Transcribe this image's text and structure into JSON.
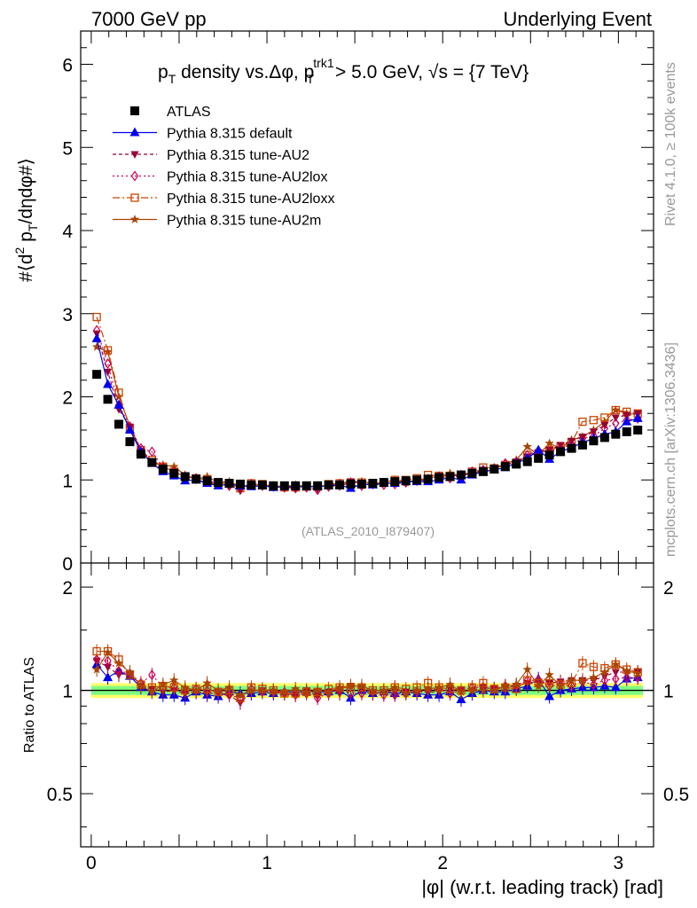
{
  "header": {
    "left": "7000 GeV pp",
    "right": "Underlying Event"
  },
  "side_labels": {
    "rivet": "Rivet 4.1.0, ≥ 100k events",
    "site": "mcplots.cern.ch [arXiv:1306.3436]"
  },
  "analysis_id": "(ATLAS_2010_I879407)",
  "chart_data": [
    {
      "type": "scatter",
      "title": "p_T density vs.Δφ, p_T^trk1 > 5.0 GeV, √s = {7 TeV}",
      "title_parts": {
        "p": "p",
        "T": "T",
        "mid": " density vs.Δφ, p",
        "sup": "trk1",
        "sub2": "T",
        "tail": " > 5.0 GeV, √s = {7 TeV}"
      },
      "xlabel": "|φ| (w.r.t. leading track) [rad]",
      "ylabel": "#⟨d² p_T/dηdφ#⟩",
      "ylabel_parts": {
        "main": "#⟨d",
        "sup": "2",
        "mid": " p",
        "sub": "T",
        "tail": "/dηdφ#⟩"
      },
      "xlim": [
        -0.06,
        3.2
      ],
      "ylim": [
        0,
        6.4
      ],
      "yticks": [
        0,
        1,
        2,
        3,
        4,
        5,
        6
      ],
      "xticks": [
        0,
        1,
        2,
        3
      ],
      "x": [
        0.0314,
        0.0942,
        0.157,
        0.2199,
        0.2827,
        0.3456,
        0.4084,
        0.4712,
        0.5341,
        0.5969,
        0.6597,
        0.7226,
        0.7854,
        0.8482,
        0.911,
        0.9739,
        1.0367,
        1.0996,
        1.1624,
        1.2252,
        1.2881,
        1.3509,
        1.4137,
        1.4765,
        1.5394,
        1.6022,
        1.665,
        1.7279,
        1.7907,
        1.8535,
        1.9164,
        1.9792,
        2.042,
        2.1049,
        2.1677,
        2.2305,
        2.2934,
        2.3562,
        2.419,
        2.4819,
        2.5447,
        2.6075,
        2.6704,
        2.7332,
        2.796,
        2.8588,
        2.9217,
        2.9845,
        3.0473,
        3.1102
      ],
      "series": [
        {
          "name": "ATLAS",
          "color": "#000000",
          "marker": "square",
          "dash": "none",
          "values": [
            2.27,
            1.97,
            1.67,
            1.46,
            1.31,
            1.21,
            1.13,
            1.08,
            1.04,
            1.01,
            0.99,
            0.97,
            0.96,
            0.95,
            0.94,
            0.94,
            0.93,
            0.93,
            0.93,
            0.93,
            0.93,
            0.94,
            0.94,
            0.95,
            0.95,
            0.96,
            0.97,
            0.98,
            0.99,
            1.0,
            1.01,
            1.03,
            1.04,
            1.06,
            1.08,
            1.1,
            1.13,
            1.16,
            1.19,
            1.22,
            1.26,
            1.3,
            1.34,
            1.38,
            1.42,
            1.47,
            1.51,
            1.55,
            1.58,
            1.6
          ]
        },
        {
          "name": "Pythia 8.315 default",
          "color": "#0000ee",
          "marker": "triangle-up",
          "dash": "none",
          "values": [
            2.7,
            2.15,
            1.9,
            1.6,
            1.34,
            1.2,
            1.1,
            1.05,
            0.99,
            1.0,
            0.96,
            0.93,
            0.95,
            0.93,
            0.92,
            0.93,
            0.91,
            0.92,
            0.92,
            0.92,
            0.92,
            0.93,
            0.94,
            0.9,
            0.95,
            0.94,
            0.96,
            0.96,
            0.98,
            0.98,
            0.98,
            1.0,
            1.03,
            1.0,
            1.06,
            1.1,
            1.12,
            1.15,
            1.2,
            1.26,
            1.36,
            1.25,
            1.34,
            1.39,
            1.45,
            1.5,
            1.55,
            1.58,
            1.7,
            1.74
          ]
        },
        {
          "name": "Pythia 8.315 tune-AU2",
          "color": "#990033",
          "marker": "triangle-down",
          "dash": "4,3",
          "values": [
            2.76,
            2.3,
            1.85,
            1.64,
            1.35,
            1.22,
            1.12,
            1.08,
            1.02,
            1.0,
            0.97,
            0.95,
            0.93,
            0.87,
            0.93,
            0.94,
            0.92,
            0.91,
            0.9,
            0.93,
            0.89,
            0.93,
            0.92,
            0.98,
            0.96,
            0.94,
            0.96,
            0.97,
            0.98,
            0.99,
            1.0,
            1.02,
            1.05,
            1.06,
            1.08,
            1.12,
            1.14,
            1.18,
            1.22,
            1.28,
            1.33,
            1.36,
            1.42,
            1.47,
            1.52,
            1.58,
            1.66,
            1.75,
            1.78,
            1.8
          ]
        },
        {
          "name": "Pythia 8.315 tune-AU2lox",
          "color": "#cc0055",
          "marker": "diamond-open",
          "dash": "2,3",
          "values": [
            2.8,
            2.4,
            1.9,
            1.64,
            1.38,
            1.34,
            1.15,
            1.1,
            1.04,
            1.02,
            0.99,
            0.96,
            0.93,
            0.9,
            0.95,
            0.93,
            0.92,
            0.91,
            0.9,
            0.91,
            0.88,
            0.92,
            0.95,
            0.93,
            0.93,
            0.95,
            0.94,
            0.95,
            0.97,
            0.99,
            1.01,
            1.04,
            1.02,
            1.06,
            1.1,
            1.12,
            1.14,
            1.2,
            1.22,
            1.3,
            1.35,
            1.34,
            1.39,
            1.42,
            1.5,
            1.53,
            1.62,
            1.68,
            1.72,
            1.74
          ]
        },
        {
          "name": "Pythia 8.315 tune-AU2loxx",
          "color": "#cc4400",
          "marker": "square-open",
          "dash": "8,3,2,3",
          "values": [
            2.96,
            2.56,
            2.05,
            1.62,
            1.36,
            1.24,
            1.16,
            1.1,
            1.04,
            1.02,
            1.0,
            0.96,
            0.96,
            0.9,
            0.96,
            0.95,
            0.93,
            0.91,
            0.91,
            0.92,
            0.92,
            0.95,
            0.96,
            0.97,
            0.97,
            0.96,
            0.97,
            1.0,
            1.0,
            1.02,
            1.06,
            1.05,
            1.05,
            1.06,
            1.1,
            1.15,
            1.14,
            1.18,
            1.2,
            1.3,
            1.32,
            1.36,
            1.4,
            1.45,
            1.7,
            1.72,
            1.75,
            1.84,
            1.82,
            1.8
          ]
        },
        {
          "name": "Pythia 8.315 tune-AU2m",
          "color": "#aa4400",
          "marker": "star",
          "dash": "none",
          "values": [
            2.6,
            2.54,
            2.0,
            1.65,
            1.35,
            1.2,
            1.18,
            1.16,
            1.06,
            1.01,
            1.04,
            0.97,
            0.98,
            0.92,
            0.94,
            0.94,
            0.93,
            0.92,
            0.94,
            0.92,
            0.93,
            0.93,
            0.96,
            0.98,
            0.98,
            0.96,
            0.97,
            1.0,
            0.97,
            1.0,
            1.02,
            1.05,
            1.08,
            1.05,
            1.08,
            1.1,
            1.13,
            1.2,
            1.24,
            1.4,
            1.3,
            1.44,
            1.38,
            1.48,
            1.52,
            1.6,
            1.7,
            1.84,
            1.8,
            1.79
          ]
        }
      ]
    },
    {
      "type": "line",
      "panel": "ratio",
      "ylabel": "Ratio to ATLAS",
      "ylim": [
        0.35,
        2.35
      ],
      "yticks": [
        0.5,
        1,
        2
      ],
      "ytick_labels": [
        "0.5",
        "1",
        "2"
      ],
      "band_inner": [
        0.97,
        1.03
      ],
      "band_outer": [
        0.95,
        1.05
      ],
      "band_colors": {
        "inner": "#80ff80",
        "outer": "#ffff66"
      },
      "series_ratios": [
        {
          "name": "Pythia 8.315 default",
          "values": [
            1.19,
            1.09,
            1.14,
            1.1,
            1.02,
            0.99,
            0.97,
            0.97,
            0.95,
            0.99,
            0.97,
            0.96,
            0.99,
            0.98,
            0.98,
            0.99,
            0.98,
            0.99,
            0.99,
            0.99,
            0.99,
            0.99,
            1.0,
            0.95,
            1.0,
            0.98,
            0.99,
            0.98,
            0.99,
            0.98,
            0.97,
            0.97,
            0.99,
            0.94,
            0.98,
            1.0,
            0.99,
            0.99,
            1.01,
            1.03,
            1.08,
            0.96,
            1.0,
            1.01,
            1.02,
            1.02,
            1.03,
            1.02,
            1.08,
            1.09
          ]
        },
        {
          "name": "Pythia 8.315 tune-AU2",
          "values": [
            1.22,
            1.17,
            1.11,
            1.12,
            1.03,
            1.01,
            0.99,
            1.0,
            0.98,
            0.99,
            0.98,
            0.98,
            0.97,
            0.92,
            0.99,
            1.0,
            0.99,
            0.98,
            0.97,
            1.0,
            0.96,
            0.99,
            0.98,
            1.03,
            1.01,
            0.98,
            0.99,
            0.99,
            0.99,
            0.99,
            0.99,
            0.99,
            1.01,
            1.0,
            1.0,
            1.02,
            1.01,
            1.02,
            1.03,
            1.05,
            1.06,
            1.05,
            1.06,
            1.07,
            1.07,
            1.07,
            1.1,
            1.13,
            1.13,
            1.13
          ]
        },
        {
          "name": "Pythia 8.315 tune-AU2lox",
          "values": [
            1.23,
            1.22,
            1.14,
            1.12,
            1.05,
            1.11,
            1.02,
            1.02,
            1.0,
            1.01,
            1.0,
            0.99,
            0.97,
            0.95,
            1.01,
            0.99,
            0.99,
            0.98,
            0.97,
            0.98,
            0.95,
            0.98,
            1.01,
            0.98,
            0.98,
            0.99,
            0.97,
            0.97,
            0.98,
            0.99,
            1.0,
            1.01,
            0.98,
            1.0,
            1.02,
            1.02,
            1.01,
            1.03,
            1.03,
            1.07,
            1.07,
            1.03,
            1.04,
            1.03,
            1.06,
            1.04,
            1.07,
            1.08,
            1.09,
            1.09
          ]
        },
        {
          "name": "Pythia 8.315 tune-AU2loxx",
          "values": [
            1.3,
            1.3,
            1.23,
            1.11,
            1.04,
            1.02,
            1.03,
            1.02,
            1.0,
            1.01,
            1.01,
            0.99,
            1.0,
            0.95,
            1.02,
            1.01,
            1.0,
            0.98,
            0.98,
            0.99,
            0.99,
            1.01,
            1.02,
            1.02,
            1.02,
            1.0,
            1.0,
            1.02,
            1.01,
            1.02,
            1.05,
            1.02,
            1.01,
            1.0,
            1.02,
            1.05,
            1.01,
            1.02,
            1.01,
            1.07,
            1.05,
            1.05,
            1.04,
            1.05,
            1.2,
            1.17,
            1.16,
            1.19,
            1.15,
            1.13
          ]
        },
        {
          "name": "Pythia 8.315 tune-AU2m",
          "values": [
            1.15,
            1.29,
            1.2,
            1.13,
            1.03,
            0.99,
            1.04,
            1.07,
            1.02,
            1.0,
            1.05,
            1.0,
            1.02,
            0.97,
            1.0,
            1.0,
            1.0,
            0.99,
            1.01,
            0.99,
            1.0,
            0.99,
            1.02,
            1.03,
            1.03,
            1.0,
            1.0,
            1.02,
            0.98,
            1.0,
            1.01,
            1.02,
            1.04,
            0.99,
            1.0,
            1.0,
            1.0,
            1.03,
            1.04,
            1.15,
            1.03,
            1.11,
            1.03,
            1.07,
            1.07,
            1.09,
            1.13,
            1.19,
            1.14,
            1.12
          ]
        }
      ]
    }
  ]
}
